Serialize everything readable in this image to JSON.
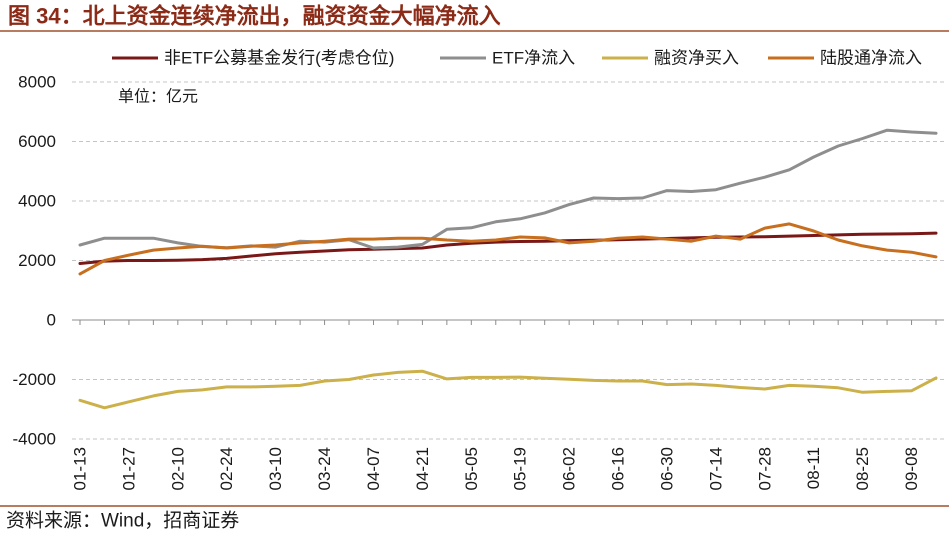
{
  "figure": {
    "title": "图 34：北上资金连续净流出，融资资金大幅净流入",
    "source": "资料来源：Wind，招商证券"
  },
  "chart_data": {
    "type": "line",
    "unit_label": "单位：亿元",
    "categories": [
      "01-13",
      "",
      "01-27",
      "",
      "02-10",
      "",
      "02-24",
      "",
      "03-10",
      "",
      "03-24",
      "",
      "04-07",
      "",
      "04-21",
      "",
      "05-05",
      "",
      "05-19",
      "",
      "06-02",
      "",
      "06-16",
      "",
      "06-30",
      "",
      "07-14",
      "",
      "07-28",
      "",
      "08-11",
      "",
      "08-25",
      "",
      "09-08",
      ""
    ],
    "ylim": [
      -4000,
      8000
    ],
    "yticks": [
      8000,
      6000,
      4000,
      2000,
      0,
      -2000,
      -4000
    ],
    "grid": true,
    "legend": "top",
    "series": [
      {
        "name": "非ETF公募基金发行(考虑仓位)",
        "color": "#7a1818",
        "values": [
          1900,
          1980,
          2000,
          2000,
          2010,
          2030,
          2070,
          2150,
          2230,
          2280,
          2320,
          2360,
          2380,
          2400,
          2420,
          2520,
          2580,
          2620,
          2640,
          2650,
          2670,
          2680,
          2700,
          2720,
          2740,
          2760,
          2780,
          2790,
          2800,
          2820,
          2840,
          2860,
          2880,
          2890,
          2900,
          2920
        ]
      },
      {
        "name": "ETF净流入",
        "color": "#8e8e8e",
        "values": [
          2520,
          2750,
          2750,
          2750,
          2590,
          2470,
          2430,
          2490,
          2450,
          2650,
          2620,
          2700,
          2420,
          2450,
          2540,
          3050,
          3100,
          3300,
          3400,
          3600,
          3880,
          4100,
          4080,
          4100,
          4350,
          4320,
          4380,
          4600,
          4800,
          5050,
          5480,
          5850,
          6100,
          6380,
          6320,
          6280
        ]
      },
      {
        "name": "融资净买入",
        "color": "#ccb04a",
        "values": [
          -2700,
          -2950,
          -2750,
          -2550,
          -2400,
          -2350,
          -2250,
          -2250,
          -2230,
          -2200,
          -2050,
          -2000,
          -1850,
          -1760,
          -1720,
          -1980,
          -1930,
          -1930,
          -1920,
          -1960,
          -1990,
          -2030,
          -2050,
          -2050,
          -2170,
          -2150,
          -2200,
          -2270,
          -2320,
          -2200,
          -2230,
          -2280,
          -2430,
          -2400,
          -2380,
          -1950
        ]
      },
      {
        "name": "陆股通净流入",
        "color": "#c76f1e",
        "values": [
          1550,
          2000,
          2180,
          2350,
          2420,
          2480,
          2420,
          2480,
          2520,
          2590,
          2650,
          2720,
          2720,
          2750,
          2750,
          2690,
          2650,
          2690,
          2790,
          2760,
          2590,
          2650,
          2750,
          2790,
          2720,
          2650,
          2820,
          2720,
          3090,
          3230,
          2990,
          2690,
          2490,
          2350,
          2280,
          2120
        ]
      }
    ]
  }
}
